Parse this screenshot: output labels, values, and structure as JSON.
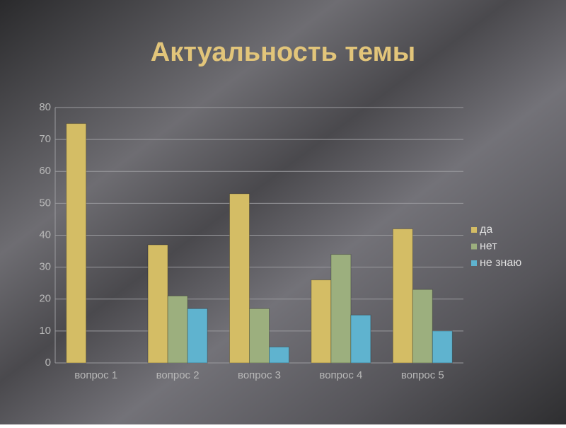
{
  "chart_data": {
    "type": "bar",
    "title": "Актуальность темы",
    "categories": [
      "вопрос 1",
      "вопрос 2",
      "вопрос 3",
      "вопрос 4",
      "вопрос 5"
    ],
    "series": [
      {
        "name": "да",
        "color": "#d4bd65",
        "values": [
          75,
          37,
          53,
          26,
          42
        ]
      },
      {
        "name": "нет",
        "color": "#9caf7e",
        "values": [
          0,
          21,
          17,
          34,
          23
        ]
      },
      {
        "name": "не знаю",
        "color": "#5fb3cf",
        "values": [
          0,
          17,
          5,
          15,
          10
        ]
      }
    ],
    "ylim": [
      0,
      80
    ],
    "yticks": [
      0,
      10,
      20,
      30,
      40,
      50,
      60,
      70,
      80
    ],
    "grid": true,
    "legend": "right"
  }
}
